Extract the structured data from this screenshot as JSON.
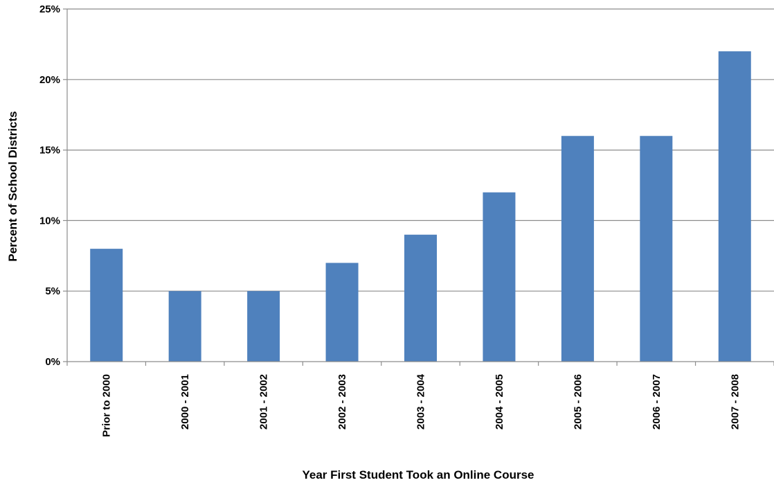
{
  "chart_data": {
    "type": "bar",
    "title": "",
    "xlabel": "Year First Student Took an Online Course",
    "ylabel": "Percent of School Districts",
    "categories": [
      "Prior to 2000",
      "2000 - 2001",
      "2001 - 2002",
      "2002 - 2003",
      "2003 - 2004",
      "2004 - 2005",
      "2005 - 2006",
      "2006 - 2007",
      "2007 - 2008"
    ],
    "values": [
      8,
      5,
      5,
      7,
      9,
      12,
      16,
      16,
      22
    ],
    "unit": "%",
    "ylim": [
      0,
      25
    ],
    "yticks": [
      0,
      5,
      10,
      15,
      20,
      25
    ],
    "ytick_labels": [
      "0%",
      "5%",
      "10%",
      "15%",
      "20%",
      "25%"
    ],
    "bar_color": "#4F81BD",
    "grid": true,
    "legend": "none"
  }
}
